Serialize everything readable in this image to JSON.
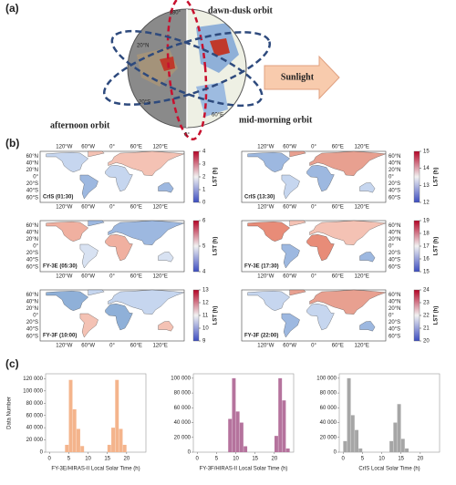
{
  "panel_labels": [
    "(a)",
    "(b)",
    "(c)"
  ],
  "diagram": {
    "orbits": [
      "dawn-dusk orbit",
      "afternoon orbit",
      "mid-morning orbit"
    ],
    "sunlight": "Sunlight",
    "globe_labels": [
      "180°",
      "20°N",
      "20°S",
      "60°E",
      "0°"
    ]
  },
  "maps": {
    "lon_labels": [
      "120°W",
      "60°W",
      "0°",
      "60°E",
      "120°E"
    ],
    "lat_labels": [
      "60°N",
      "40°N",
      "20°N",
      "0°",
      "20°S",
      "40°S",
      "60°S"
    ],
    "colorbar_label": "LST (h)",
    "panels": [
      {
        "name": "CrIS (01:30)",
        "clim": [
          0,
          4
        ],
        "cticks": [
          0,
          1,
          2,
          3,
          4
        ]
      },
      {
        "name": "CrIS (13:30)",
        "clim": [
          12,
          15
        ],
        "cticks": [
          12,
          13,
          14,
          15
        ]
      },
      {
        "name": "FY-3E (05:30)",
        "clim": [
          4,
          6
        ],
        "cticks": [
          4,
          5,
          6
        ]
      },
      {
        "name": "FY-3E (17:30)",
        "clim": [
          15,
          19
        ],
        "cticks": [
          15,
          16,
          17,
          18,
          19
        ]
      },
      {
        "name": "FY-3F (10:00)",
        "clim": [
          9,
          13
        ],
        "cticks": [
          9,
          10,
          11,
          12,
          13
        ]
      },
      {
        "name": "FY-3F (22:00)",
        "clim": [
          20,
          24
        ],
        "cticks": [
          20,
          21,
          22,
          23,
          24
        ]
      }
    ]
  },
  "chart_data": [
    {
      "type": "histogram",
      "xlabel": "FY-3E/HIRAS-II Local Solar Time (h)",
      "ylabel": "Data Number",
      "color": "#f4b48c",
      "bins": [
        0,
        1,
        2,
        3,
        4,
        5,
        6,
        7,
        8,
        9,
        10,
        11,
        12,
        13,
        14,
        15,
        16,
        17,
        18,
        19,
        20,
        21,
        22,
        23,
        24
      ],
      "values": [
        0,
        0,
        0,
        0,
        12000,
        118000,
        70000,
        38000,
        10000,
        0,
        0,
        0,
        0,
        0,
        0,
        12000,
        40000,
        118000,
        38000,
        12000,
        0,
        0,
        0,
        0
      ],
      "xlim": [
        -1,
        25
      ],
      "ylim": [
        0,
        128000
      ],
      "xticks": [
        0,
        5,
        10,
        15,
        20
      ],
      "yticks": [
        0,
        {
          "value": 20000,
          "label": "20 000"
        },
        {
          "value": 40000,
          "label": "40 000"
        },
        {
          "value": 60000,
          "label": "60 000"
        },
        {
          "value": 80000,
          "label": "80 000"
        },
        {
          "value": 100000,
          "label": "100 000"
        },
        {
          "value": 120000,
          "label": "120 000"
        }
      ]
    },
    {
      "type": "histogram",
      "xlabel": "FY-3F/HIRAS-II Local Solar Time (h)",
      "color": "#b5739d",
      "bins": [
        0,
        1,
        2,
        3,
        4,
        5,
        6,
        7,
        8,
        9,
        10,
        11,
        12,
        13,
        14,
        15,
        16,
        17,
        18,
        19,
        20,
        21,
        22,
        23,
        24
      ],
      "values": [
        0,
        0,
        0,
        0,
        0,
        0,
        0,
        0,
        45000,
        100000,
        55000,
        40000,
        8000,
        0,
        0,
        0,
        0,
        0,
        0,
        0,
        22000,
        100000,
        70000,
        5000
      ],
      "xlim": [
        -1,
        25
      ],
      "ylim": [
        0,
        106000
      ],
      "xticks": [
        0,
        5,
        10,
        15,
        20
      ],
      "yticks": [
        0,
        {
          "value": 20000,
          "label": "20 000"
        },
        {
          "value": 40000,
          "label": "40 000"
        },
        {
          "value": 60000,
          "label": "60 000"
        },
        {
          "value": 80000,
          "label": "80 000"
        },
        {
          "value": 100000,
          "label": "100 000"
        }
      ]
    },
    {
      "type": "histogram",
      "xlabel": "CrIS Local Solar Time (h)",
      "color": "#a6a6a6",
      "bins": [
        0,
        1,
        2,
        3,
        4,
        5,
        6,
        7,
        8,
        9,
        10,
        11,
        12,
        13,
        14,
        15,
        16,
        17,
        18,
        19,
        20,
        21,
        22,
        23,
        24
      ],
      "values": [
        15000,
        100000,
        50000,
        30000,
        5000,
        0,
        0,
        0,
        0,
        0,
        0,
        0,
        15000,
        40000,
        65000,
        18000,
        5000,
        0,
        0,
        0,
        0,
        0,
        0,
        0
      ],
      "xlim": [
        -1,
        25
      ],
      "ylim": [
        0,
        106000
      ],
      "xticks": [
        0,
        5,
        10,
        15,
        20
      ],
      "yticks": [
        0,
        {
          "value": 20000,
          "label": "20 000"
        },
        {
          "value": 40000,
          "label": "40 000"
        },
        {
          "value": 60000,
          "label": "60 000"
        },
        {
          "value": 80000,
          "label": "80 000"
        },
        {
          "value": 100000,
          "label": "100 000"
        }
      ]
    }
  ]
}
